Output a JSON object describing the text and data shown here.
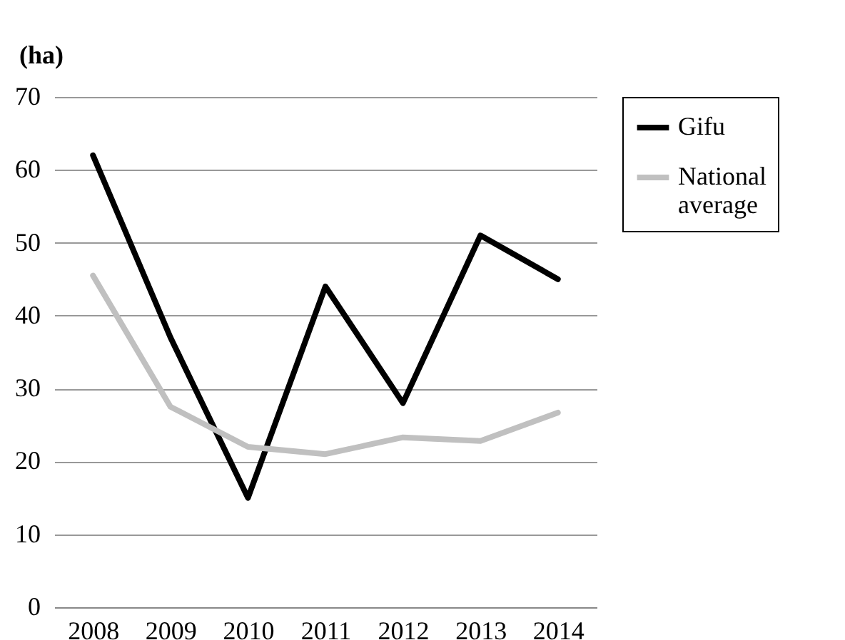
{
  "chart_data": {
    "type": "line",
    "ylabel": "(ha)",
    "categories": [
      "2008",
      "2009",
      "2010",
      "2011",
      "2012",
      "2013",
      "2014"
    ],
    "series": [
      {
        "name": "Gifu",
        "color": "#000000",
        "values": [
          62,
          37,
          15,
          44,
          28,
          51,
          45
        ]
      },
      {
        "name": "National average",
        "color": "#c0c0c0",
        "values": [
          45.5,
          27.5,
          22,
          21,
          23.3,
          22.8,
          26.7
        ]
      }
    ],
    "ylim": [
      0,
      70
    ],
    "yticks": [
      0,
      10,
      20,
      30,
      40,
      50,
      60,
      70
    ],
    "grid": "y",
    "legend": "top right",
    "marker": "none",
    "line_style": "solid"
  }
}
